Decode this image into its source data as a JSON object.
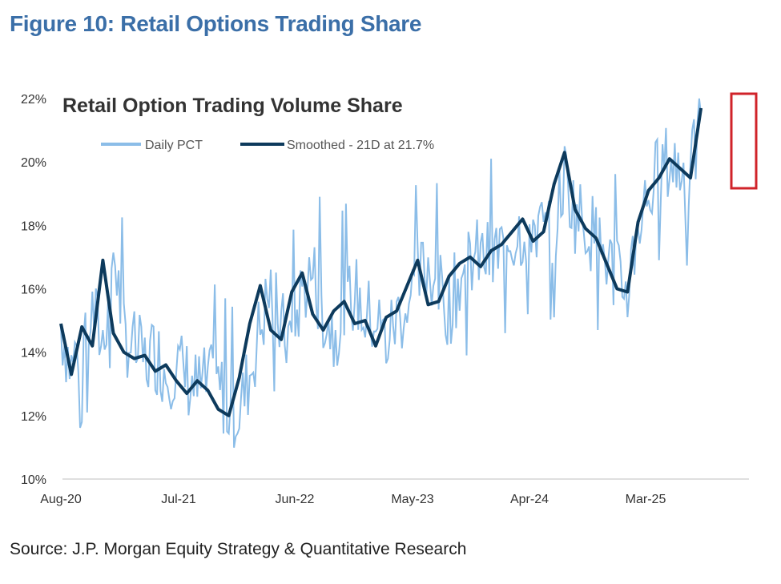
{
  "figure_title": "Figure 10: Retail Options Trading Share",
  "source": "Source: J.P. Morgan Equity Strategy & Quantitative Research",
  "colors": {
    "daily": "#8bbde8",
    "smoothed": "#0d3a5c",
    "highlight": "#d0232a",
    "title": "#3b6fa8"
  },
  "chart_data": {
    "type": "line",
    "title": "Retail Option Trading Volume Share",
    "xlabel": "",
    "ylabel": "",
    "ylim": [
      10,
      22
    ],
    "yticks": [
      "10%",
      "12%",
      "14%",
      "16%",
      "18%",
      "20%",
      "22%"
    ],
    "xticks": [
      "Aug-20",
      "Jul-21",
      "Jun-22",
      "May-23",
      "Apr-24",
      "Mar-25"
    ],
    "grid": false,
    "legend_position": "top",
    "series": [
      {
        "name": "Daily PCT",
        "x": [
          "Aug-20",
          "Sep-20",
          "Oct-20",
          "Nov-20",
          "Dec-20",
          "Jan-21",
          "Feb-21",
          "Mar-21",
          "Apr-21",
          "May-21",
          "Jun-21",
          "Jul-21",
          "Aug-21",
          "Sep-21",
          "Oct-21",
          "Nov-21",
          "Dec-21",
          "Jan-22",
          "Feb-22",
          "Mar-22",
          "Apr-22",
          "May-22",
          "Jun-22",
          "Jul-22",
          "Aug-22",
          "Sep-22",
          "Oct-22",
          "Nov-22",
          "Dec-22",
          "Jan-23",
          "Feb-23",
          "Mar-23",
          "Apr-23",
          "May-23",
          "Jun-23",
          "Jul-23",
          "Aug-23",
          "Sep-23",
          "Oct-23",
          "Nov-23",
          "Dec-23",
          "Jan-24",
          "Feb-24",
          "Mar-24",
          "Apr-24",
          "May-24",
          "Jun-24",
          "Jul-24",
          "Aug-24",
          "Sep-24",
          "Oct-24",
          "Nov-24",
          "Dec-24",
          "Jan-25",
          "Feb-25",
          "Mar-25",
          "Apr-25",
          "May-25",
          "Jun-25",
          "Jul-25",
          "Aug-25",
          "Sep-25"
        ],
        "values": [
          14.8,
          13.5,
          14.6,
          15.2,
          14.3,
          17.3,
          14.6,
          14.1,
          13.7,
          14.0,
          13.4,
          13.6,
          13.2,
          12.8,
          13.0,
          12.9,
          12.3,
          12.1,
          13.3,
          14.8,
          16.0,
          14.7,
          14.4,
          16.0,
          16.5,
          15.3,
          14.6,
          15.4,
          15.9,
          15.1,
          15.1,
          14.3,
          15.1,
          15.4,
          16.2,
          16.8,
          16.0,
          15.4,
          16.3,
          16.9,
          17.0,
          16.9,
          17.3,
          17.6,
          17.9,
          18.1,
          17.7,
          17.9,
          19.6,
          18.4,
          18.1,
          17.6,
          17.0,
          16.3,
          16.0,
          18.1,
          19.0,
          19.7,
          20.0,
          19.8,
          19.4,
          21.5
        ]
      },
      {
        "name": "Smoothed - 21D at 21.7%",
        "x": [
          "Aug-20",
          "Sep-20",
          "Oct-20",
          "Nov-20",
          "Dec-20",
          "Jan-21",
          "Feb-21",
          "Mar-21",
          "Apr-21",
          "May-21",
          "Jun-21",
          "Jul-21",
          "Aug-21",
          "Sep-21",
          "Oct-21",
          "Nov-21",
          "Dec-21",
          "Jan-22",
          "Feb-22",
          "Mar-22",
          "Apr-22",
          "May-22",
          "Jun-22",
          "Jul-22",
          "Aug-22",
          "Sep-22",
          "Oct-22",
          "Nov-22",
          "Dec-22",
          "Jan-23",
          "Feb-23",
          "Mar-23",
          "Apr-23",
          "May-23",
          "Jun-23",
          "Jul-23",
          "Aug-23",
          "Sep-23",
          "Oct-23",
          "Nov-23",
          "Dec-23",
          "Jan-24",
          "Feb-24",
          "Mar-24",
          "Apr-24",
          "May-24",
          "Jun-24",
          "Jul-24",
          "Aug-24",
          "Sep-24",
          "Oct-24",
          "Nov-24",
          "Dec-24",
          "Jan-25",
          "Feb-25",
          "Mar-25",
          "Apr-25",
          "May-25",
          "Jun-25",
          "Jul-25",
          "Aug-25",
          "Sep-25"
        ],
        "values": [
          14.9,
          13.3,
          14.8,
          14.2,
          16.9,
          14.6,
          14.0,
          13.8,
          13.9,
          13.4,
          13.6,
          13.1,
          12.7,
          13.1,
          12.8,
          12.2,
          12.0,
          13.2,
          14.9,
          16.1,
          14.7,
          14.4,
          15.9,
          16.5,
          15.2,
          14.7,
          15.3,
          15.6,
          14.9,
          15.0,
          14.2,
          15.1,
          15.3,
          16.1,
          16.9,
          15.5,
          15.6,
          16.4,
          16.8,
          17.0,
          16.7,
          17.2,
          17.4,
          17.8,
          18.2,
          17.5,
          17.8,
          19.3,
          20.3,
          18.5,
          17.9,
          17.6,
          16.8,
          16.0,
          15.9,
          18.1,
          19.1,
          19.5,
          20.1,
          19.8,
          19.5,
          21.7
        ]
      }
    ],
    "annotation": "red box highlighting latest reading"
  }
}
